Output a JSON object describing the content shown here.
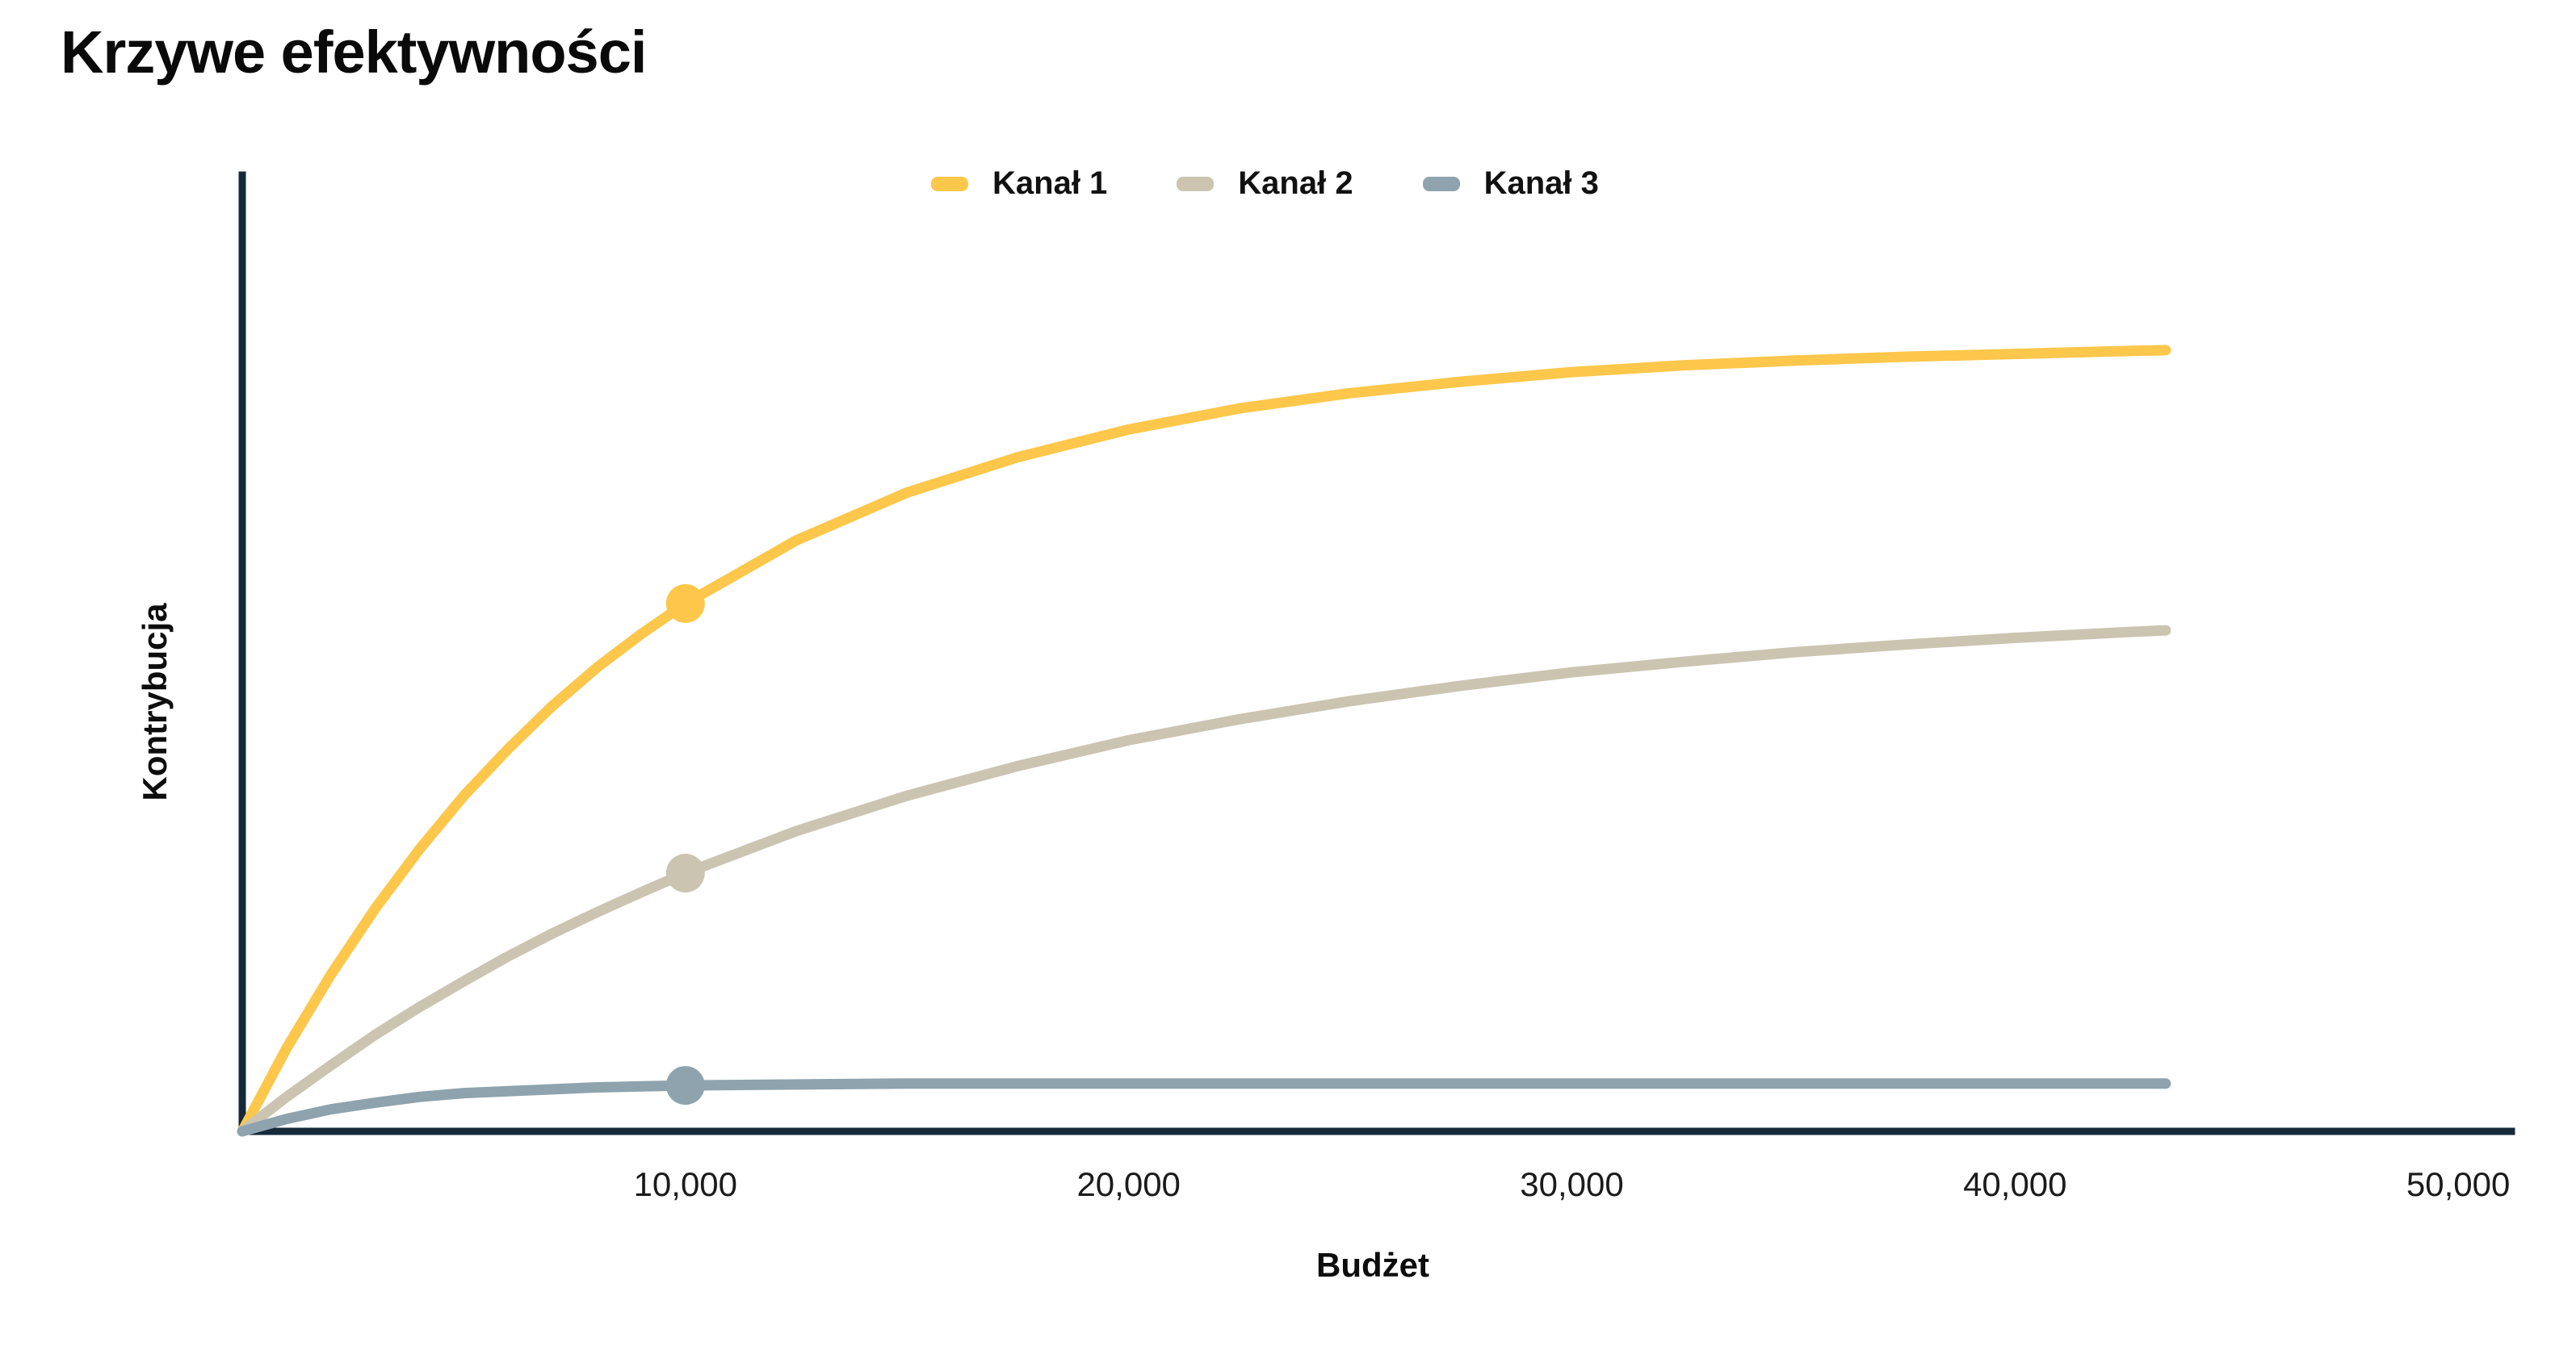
{
  "title": "Krzywe efektywności",
  "chart_data": {
    "type": "line",
    "title": "Krzywe efektywności",
    "xlabel": "Budżet",
    "ylabel": "Kontrybucja",
    "x_ticks": [
      "10,000",
      "20,000",
      "30,000",
      "40,000",
      "50,000"
    ],
    "x_tick_values": [
      10000,
      20000,
      30000,
      40000,
      50000
    ],
    "xlim": [
      0,
      51200
    ],
    "ylim": [
      0,
      100
    ],
    "grid": false,
    "legend_position": "top-center",
    "y_axis_numeric_labels": false,
    "x": [
      0,
      1000,
      2000,
      3000,
      4000,
      5000,
      6000,
      7000,
      8000,
      9000,
      10000,
      12500,
      15000,
      17500,
      20000,
      22500,
      25000,
      27500,
      30000,
      32500,
      35000,
      37500,
      40000,
      42500,
      43400
    ],
    "series": [
      {
        "name": "Kanał 1",
        "color": "#FCC74B",
        "shape": "saturation-curve",
        "y": [
          0,
          8.7,
          16.4,
          23.3,
          29.5,
          35.1,
          40.0,
          44.5,
          48.5,
          52.0,
          55.2,
          61.8,
          66.8,
          70.5,
          73.4,
          75.6,
          77.2,
          78.4,
          79.4,
          80.1,
          80.6,
          81.0,
          81.3,
          81.6,
          81.7
        ],
        "marker": {
          "x": 10000,
          "y": 55.2
        }
      },
      {
        "name": "Kanał 2",
        "color": "#CBC4B1",
        "shape": "saturation-curve",
        "y": [
          0,
          3.6,
          6.9,
          10.1,
          13.0,
          15.7,
          18.3,
          20.7,
          22.9,
          25.0,
          27.0,
          31.4,
          35.1,
          38.2,
          40.9,
          43.1,
          45.0,
          46.6,
          48.0,
          49.1,
          50.1,
          50.9,
          51.6,
          52.2,
          52.4
        ],
        "marker": {
          "x": 10000,
          "y": 27.0
        }
      },
      {
        "name": "Kanał 3",
        "color": "#8EA3AE",
        "shape": "saturation-curve",
        "y": [
          0,
          1.3,
          2.3,
          3.0,
          3.6,
          4.0,
          4.2,
          4.4,
          4.6,
          4.7,
          4.8,
          4.9,
          5.0,
          5.0,
          5.0,
          5.0,
          5.0,
          5.0,
          5.0,
          5.0,
          5.0,
          5.0,
          5.0,
          5.0,
          5.0
        ],
        "marker": {
          "x": 10000,
          "y": 4.8
        }
      }
    ]
  },
  "colors": {
    "axis": "#15293A",
    "background": "#FFFFFF",
    "tick_text": "#1B1B1B",
    "title_text": "#0A0A0A"
  },
  "style": {
    "curve_stroke_width": 13,
    "axis_stroke_width": 9,
    "marker_radius": 24
  }
}
